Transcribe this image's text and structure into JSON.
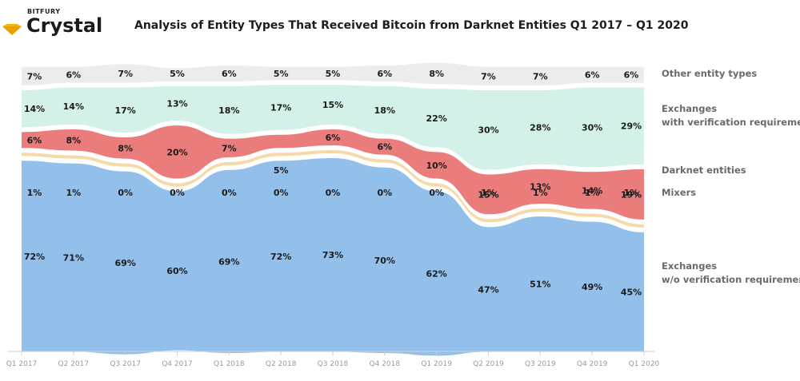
{
  "brand": {
    "top": "BITFURY",
    "name": "Crystal",
    "accent": "#f5b400"
  },
  "title": "Analysis of Entity Types That Received Bitcoin from Darknet Entities Q1 2017 – Q1 2020",
  "chart_data": {
    "type": "area",
    "stacking": "100% stacked streamgraph with gaps between series",
    "categories": [
      "Q1 2017",
      "Q2 2017",
      "Q3 2017",
      "Q4 2017",
      "Q1 2018",
      "Q2 2018",
      "Q3 2018",
      "Q4 2018",
      "Q1 2019",
      "Q2 2019",
      "Q3 2019",
      "Q4 2019",
      "Q1 2020"
    ],
    "series": [
      {
        "name": "Other entity types",
        "color": "#ececec",
        "values": [
          7,
          6,
          7,
          5,
          6,
          5,
          5,
          6,
          8,
          7,
          7,
          6,
          6
        ],
        "labels": [
          "7%",
          "6%",
          "7%",
          "5%",
          "6%",
          "5%",
          "5%",
          "6%",
          "8%",
          "7%",
          "7%",
          "6%",
          "6%"
        ]
      },
      {
        "name": "Exchanges with verification requirements",
        "label_lines": [
          "Exchanges",
          "with verification requirements"
        ],
        "color": "#d3f1e8",
        "values": [
          14,
          14,
          17,
          13,
          18,
          17,
          15,
          18,
          22,
          30,
          28,
          30,
          29
        ],
        "labels": [
          "14%",
          "14%",
          "17%",
          "13%",
          "18%",
          "17%",
          "15%",
          "18%",
          "22%",
          "30%",
          "28%",
          "30%",
          "29%"
        ]
      },
      {
        "name": "Darknet entities",
        "color": "#ea7d7c",
        "values": [
          6,
          8,
          8,
          20,
          7,
          5,
          6,
          6,
          10,
          15,
          13,
          14,
          19
        ],
        "labels": [
          "6%",
          "8%",
          "8%",
          "20%",
          "7%",
          "5%",
          "6%",
          "6%",
          "10%",
          "15%",
          "13%",
          "14%",
          "19%"
        ]
      },
      {
        "name": "Mixers",
        "color": "#f6d9a6",
        "values": [
          1,
          1,
          0,
          0,
          0,
          0,
          0,
          0,
          0,
          1,
          1,
          1,
          1
        ],
        "labels": [
          "1%",
          "1%",
          "0%",
          "0%",
          "0%",
          "0%",
          "0%",
          "0%",
          "0%",
          "1%",
          "1%",
          "1%",
          "1%"
        ]
      },
      {
        "name": "Exchanges w/o verification requirements",
        "label_lines": [
          "Exchanges",
          "w/o verification requirements"
        ],
        "color": "#93c0eb",
        "values": [
          72,
          71,
          69,
          60,
          69,
          72,
          73,
          70,
          62,
          47,
          51,
          49,
          45
        ],
        "labels": [
          "72%",
          "71%",
          "69%",
          "60%",
          "69%",
          "72%",
          "73%",
          "70%",
          "62%",
          "47%",
          "51%",
          "49%",
          "45%"
        ]
      }
    ],
    "legend": "right"
  }
}
